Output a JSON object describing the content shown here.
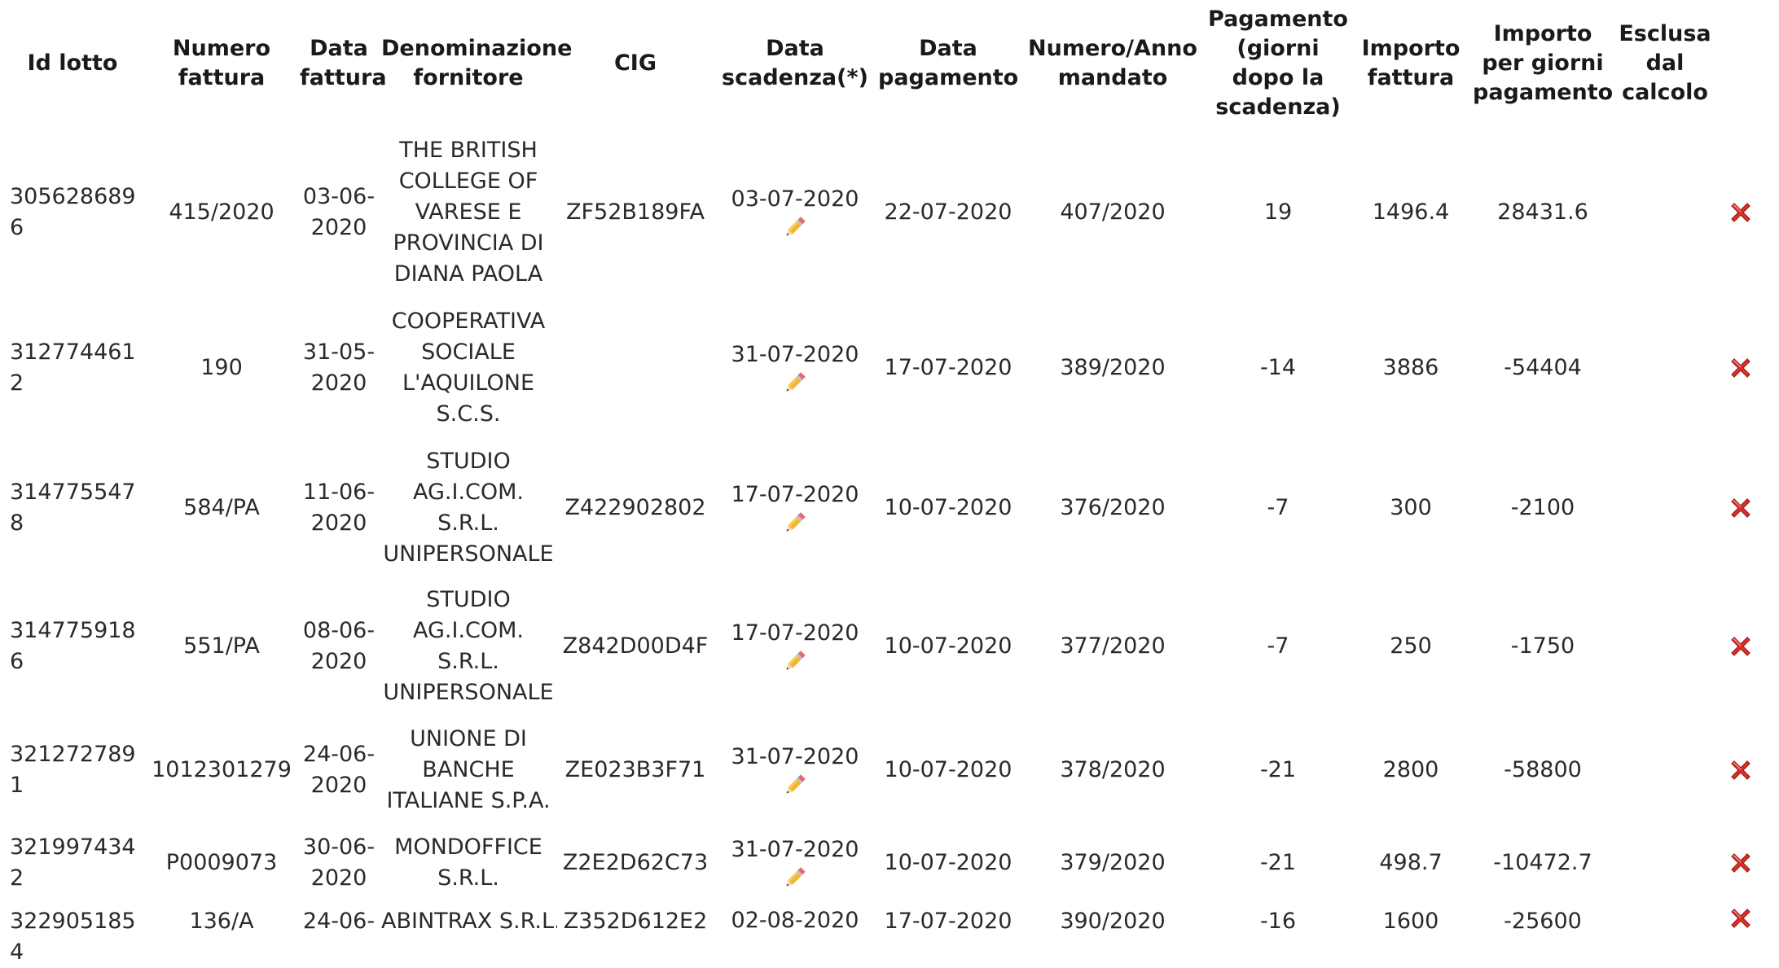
{
  "columns": {
    "id_lotto": "Id lotto",
    "numero_fattura": "Numero fattura",
    "data_fattura": "Data fattura",
    "denominazione_fornitore": "Denominazione fornitore",
    "cig": "CIG",
    "data_scadenza": "Data scadenza(*)",
    "data_pagamento": "Data pagamento",
    "numero_anno_mandato": "Numero/Anno mandato",
    "pagamento_giorni": "Pagamento (giorni dopo la scadenza)",
    "importo_fattura": "Importo fattura",
    "importo_per_giorni": "Importo per giorni pagamento",
    "esclusa_dal_calcolo": "Esclusa dal calcolo"
  },
  "icons": {
    "edit": "pencil-icon",
    "delete": "delete-x-icon",
    "delete_color": "#d9322a"
  },
  "rows": [
    {
      "id_lotto": "3056286896",
      "numero_fattura": "415/2020",
      "data_fattura": "03-06-2020",
      "fornitore": "THE BRITISH COLLEGE OF VARESE E PROVINCIA DI DIANA PAOLA",
      "cig": "ZF52B189FA",
      "data_scadenza": "03-07-2020",
      "data_pagamento": "22-07-2020",
      "mandato": "407/2020",
      "giorni": "19",
      "importo": "1496.4",
      "importo_giorni": "28431.6"
    },
    {
      "id_lotto": "3127744612",
      "numero_fattura": "190",
      "data_fattura": "31-05-2020",
      "fornitore": "COOPERATIVA SOCIALE L'AQUILONE S.C.S.",
      "cig": "",
      "data_scadenza": "31-07-2020",
      "data_pagamento": "17-07-2020",
      "mandato": "389/2020",
      "giorni": "-14",
      "importo": "3886",
      "importo_giorni": "-54404"
    },
    {
      "id_lotto": "3147755478",
      "numero_fattura": "584/PA",
      "data_fattura": "11-06-2020",
      "fornitore": "STUDIO AG.I.COM. S.R.L. UNIPERSONALE",
      "cig": "Z422902802",
      "data_scadenza": "17-07-2020",
      "data_pagamento": "10-07-2020",
      "mandato": "376/2020",
      "giorni": "-7",
      "importo": "300",
      "importo_giorni": "-2100"
    },
    {
      "id_lotto": "3147759186",
      "numero_fattura": "551/PA",
      "data_fattura": "08-06-2020",
      "fornitore": "STUDIO AG.I.COM. S.R.L. UNIPERSONALE",
      "cig": "Z842D00D4F",
      "data_scadenza": "17-07-2020",
      "data_pagamento": "10-07-2020",
      "mandato": "377/2020",
      "giorni": "-7",
      "importo": "250",
      "importo_giorni": "-1750"
    },
    {
      "id_lotto": "3212727891",
      "numero_fattura": "1012301279",
      "data_fattura": "24-06-2020",
      "fornitore": "UNIONE DI BANCHE ITALIANE S.P.A.",
      "cig": "ZE023B3F71",
      "data_scadenza": "31-07-2020",
      "data_pagamento": "10-07-2020",
      "mandato": "378/2020",
      "giorni": "-21",
      "importo": "2800",
      "importo_giorni": "-58800"
    },
    {
      "id_lotto": "3219974342",
      "numero_fattura": "P0009073",
      "data_fattura": "30-06-2020",
      "fornitore": "MONDOFFICE S.R.L.",
      "cig": "Z2E2D62C73",
      "data_scadenza": "31-07-2020",
      "data_pagamento": "10-07-2020",
      "mandato": "379/2020",
      "giorni": "-21",
      "importo": "498.7",
      "importo_giorni": "-10472.7"
    },
    {
      "id_lotto": "3229051854",
      "numero_fattura": "136/A",
      "data_fattura": "24-06-",
      "fornitore": "ABINTRAX S.R.L.",
      "cig": "Z352D612E2",
      "data_scadenza": "02-08-2020",
      "data_pagamento": "17-07-2020",
      "mandato": "390/2020",
      "giorni": "-16",
      "importo": "1600",
      "importo_giorni": "-25600"
    }
  ]
}
